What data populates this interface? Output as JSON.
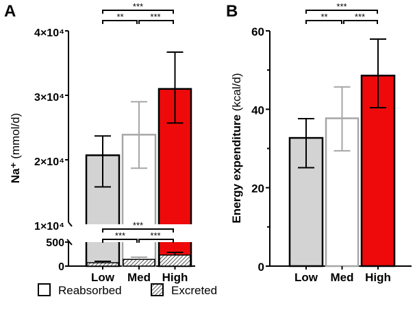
{
  "chart_data": [
    {
      "panel": "A",
      "type": "bar",
      "categories": [
        "Low",
        "Med",
        "High"
      ],
      "ylabel_bold": "Na⁺",
      "ylabel_unit": "(mmol/d)",
      "axis_break": true,
      "upper_segment": {
        "ylim": [
          10000,
          40000
        ],
        "ticks": [
          10000,
          20000,
          30000,
          40000
        ],
        "tick_labels": [
          "1×10⁴",
          "2×10⁴",
          "3×10⁴",
          "4×10⁴"
        ]
      },
      "lower_segment": {
        "ylim": [
          0,
          500
        ],
        "ticks": [
          0,
          500
        ],
        "tick_labels": [
          "0",
          "500"
        ]
      },
      "series": [
        {
          "name": "Reabsorbed",
          "values": [
            20700,
            23900,
            31000
          ],
          "err_low": [
            15800,
            18700,
            25700
          ],
          "err_high": [
            23700,
            29000,
            36700
          ]
        },
        {
          "name": "Excreted",
          "values": [
            70,
            140,
            230
          ],
          "err_high": [
            100,
            185,
            285
          ]
        }
      ],
      "significance_upper": [
        {
          "from": "Low",
          "to": "High",
          "label": "***"
        },
        {
          "from": "Low",
          "to": "Med",
          "label": "**"
        },
        {
          "from": "Med",
          "to": "High",
          "label": "***"
        }
      ],
      "significance_lower": [
        {
          "from": "Low",
          "to": "High",
          "label": "***"
        },
        {
          "from": "Low",
          "to": "Med",
          "label": "***"
        },
        {
          "from": "Med",
          "to": "High",
          "label": "***"
        }
      ]
    },
    {
      "panel": "B",
      "type": "bar",
      "categories": [
        "Low",
        "Med",
        "High"
      ],
      "ylabel_bold": "Energy expenditure",
      "ylabel_unit": "(kcal/d)",
      "ylim": [
        0,
        60
      ],
      "ticks": [
        0,
        20,
        40,
        60
      ],
      "tick_labels": [
        "0",
        "20",
        "40",
        "60"
      ],
      "minor_ticks": [
        10,
        30,
        50
      ],
      "values": [
        32.7,
        37.7,
        48.6
      ],
      "err_low": [
        25.1,
        29.4,
        40.4
      ],
      "err_high": [
        37.6,
        45.7,
        57.9
      ],
      "significance": [
        {
          "from": "Low",
          "to": "High",
          "label": "***"
        },
        {
          "from": "Low",
          "to": "Med",
          "label": "**"
        },
        {
          "from": "Med",
          "to": "High",
          "label": "***"
        }
      ]
    }
  ],
  "legend": [
    {
      "label": "Reabsorbed",
      "pattern": "open"
    },
    {
      "label": "Excreted",
      "pattern": "hatched"
    }
  ],
  "colors": {
    "Low_fill": "#d3d3d3",
    "Low_stroke": "#000000",
    "Med_fill": "#ffffff",
    "Med_stroke": "#a6a6a6",
    "High_fill": "#ee0a0a",
    "High_stroke": "#000000"
  }
}
